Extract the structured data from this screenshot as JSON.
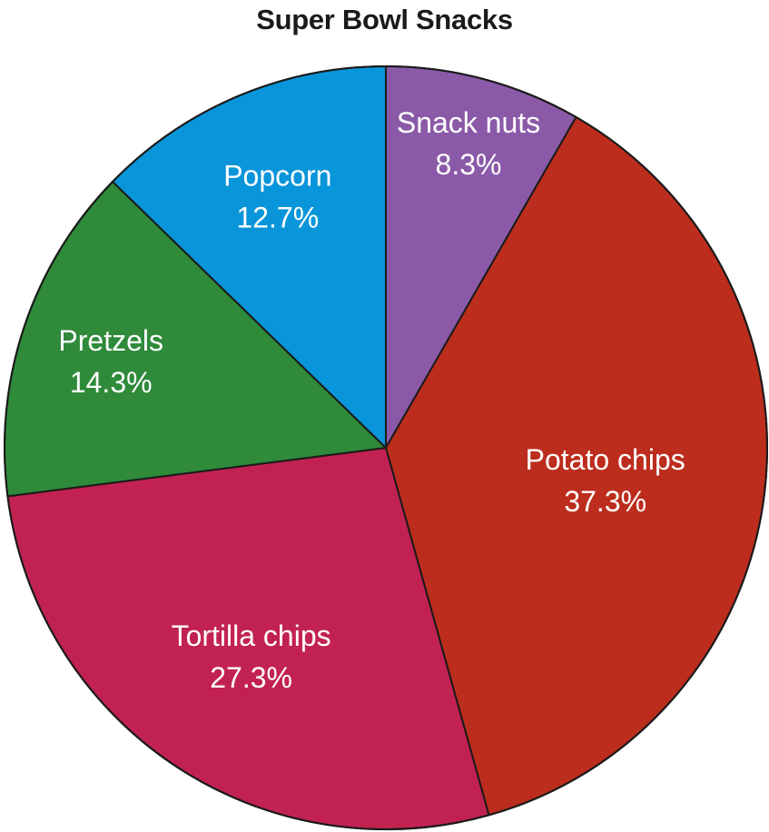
{
  "chart_data": {
    "type": "pie",
    "title": "Super Bowl Snacks",
    "slices": [
      {
        "label": "Snack nuts",
        "value": 8.3,
        "value_label": "8.3%",
        "color": "#8a5aa8"
      },
      {
        "label": "Potato chips",
        "value": 37.3,
        "value_label": "37.3%",
        "color": "#bc2d1d"
      },
      {
        "label": "Tortilla chips",
        "value": 27.3,
        "value_label": "27.3%",
        "color": "#c22252"
      },
      {
        "label": "Pretzels",
        "value": 14.3,
        "value_label": "14.3%",
        "color": "#2f8a3a"
      },
      {
        "label": "Popcorn",
        "value": 12.7,
        "value_label": "12.7%",
        "color": "#0995d9"
      }
    ],
    "start_angle": "top",
    "direction": "clockwise"
  }
}
